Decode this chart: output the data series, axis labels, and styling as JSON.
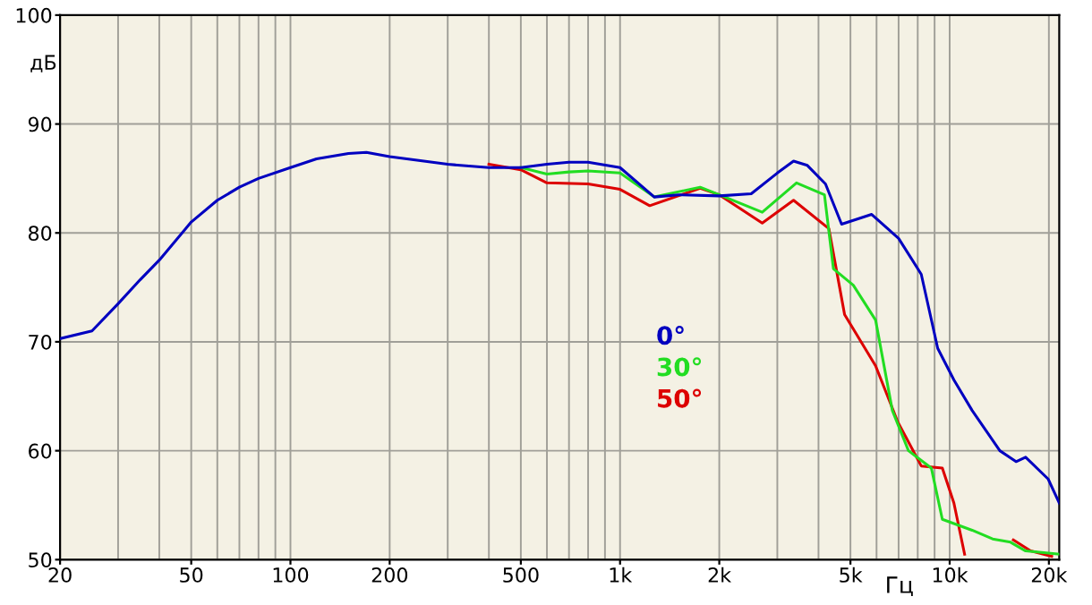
{
  "chart_data": {
    "type": "line",
    "xlabel": "Гц",
    "ylabel": "дБ",
    "log": "x",
    "xlim": [
      20,
      21500
    ],
    "ylim": [
      50,
      100
    ],
    "xticks": [
      20,
      50,
      100,
      200,
      500,
      {
        "value": 1000,
        "label": "1k"
      },
      {
        "value": 2000,
        "label": "2k"
      },
      {
        "value": 5000,
        "label": "5k"
      },
      {
        "value": 10000,
        "label": "10k"
      },
      {
        "value": 20000,
        "label": "20k"
      }
    ],
    "yticks": [
      50,
      60,
      70,
      80,
      90,
      100
    ],
    "grid": true,
    "legend": "center",
    "series": [
      {
        "name": "0°",
        "color": "#0000c0",
        "x": [
          20,
          25,
          30,
          35,
          40,
          50,
          60,
          70,
          80,
          100,
          120,
          150,
          170,
          200,
          300,
          400,
          500,
          600,
          700,
          800,
          1000,
          1270,
          1500,
          2000,
          2500,
          3000,
          3360,
          3700,
          4200,
          4700,
          5800,
          7000,
          8200,
          9200,
          10300,
          11700,
          14200,
          15900,
          17000,
          19900,
          21500
        ],
        "values": [
          70.3,
          71,
          73.5,
          75.7,
          77.5,
          81,
          83,
          84.2,
          85,
          86,
          86.8,
          87.3,
          87.4,
          87,
          86.3,
          86,
          86,
          86.3,
          86.5,
          86.5,
          86,
          83.3,
          83.5,
          83.4,
          83.6,
          85.5,
          86.6,
          86.2,
          84.5,
          80.8,
          81.7,
          79.5,
          76.2,
          69.4,
          66.5,
          63.7,
          60,
          59,
          59.4,
          57.4,
          55.2
        ]
      },
      {
        "name": "30°",
        "color": "#22dd22",
        "x": [
          500,
          600,
          700,
          800,
          1000,
          1270,
          1750,
          2000,
          2700,
          3430,
          4170,
          4440,
          5100,
          5960,
          6700,
          7500,
          8800,
          9500,
          11700,
          13500,
          15300,
          17000,
          21500
        ],
        "values": [
          86,
          85.4,
          85.6,
          85.7,
          85.5,
          83.3,
          84.2,
          83.5,
          81.9,
          84.6,
          83.5,
          76.7,
          75.2,
          72,
          63.7,
          60,
          58.4,
          53.7,
          52.7,
          51.9,
          51.6,
          50.8,
          50.5
        ]
      },
      {
        "name": "50°",
        "color": "#dd0000",
        "x": [
          400,
          500,
          600,
          800,
          1000,
          1230,
          1750,
          2000,
          2700,
          3360,
          4300,
          4800,
          5960,
          6970,
          8200,
          9500,
          10300,
          11100,
          12000,
          13500,
          15600,
          17600,
          20400
        ],
        "values": [
          86.3,
          85.8,
          84.6,
          84.5,
          84,
          82.5,
          84.1,
          83.5,
          80.9,
          83,
          80.4,
          72.5,
          67.8,
          62.6,
          58.6,
          58.4,
          55.2,
          50.5,
          null,
          null,
          51.8,
          50.8,
          50.3
        ]
      }
    ]
  }
}
